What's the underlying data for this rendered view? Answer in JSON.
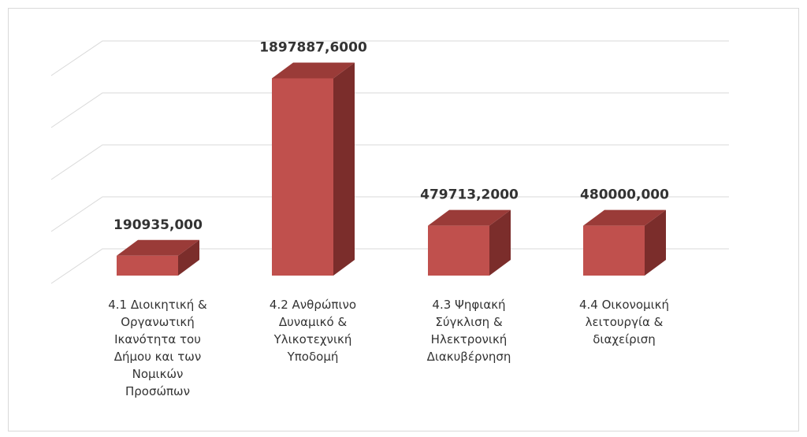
{
  "chart_data": {
    "type": "bar3d",
    "categories": [
      "4.1 Διοικητική & Οργανωτική Ικανότητα του Δήμου και των Νομικών Προσώπων",
      "4.2 Ανθρώπινο Δυναμικό & Υλικοτεχνική Υποδομή",
      "4.3 Ψηφιακή Σύγκλιση & Ηλεκτρονική Διακυβέρνηση",
      "4.4 Οικονομική λειτουργία & διαχείριση"
    ],
    "values": [
      190935,
      1897887.6,
      479713.2,
      480000
    ],
    "value_labels": [
      "190935,000",
      "1897887,6000",
      "479713,2000",
      "480000,000"
    ],
    "color": "#c0504d",
    "ylim": [
      0,
      2000000
    ],
    "yticks": [
      0,
      500000,
      1000000,
      1500000,
      2000000
    ],
    "grid": true
  }
}
